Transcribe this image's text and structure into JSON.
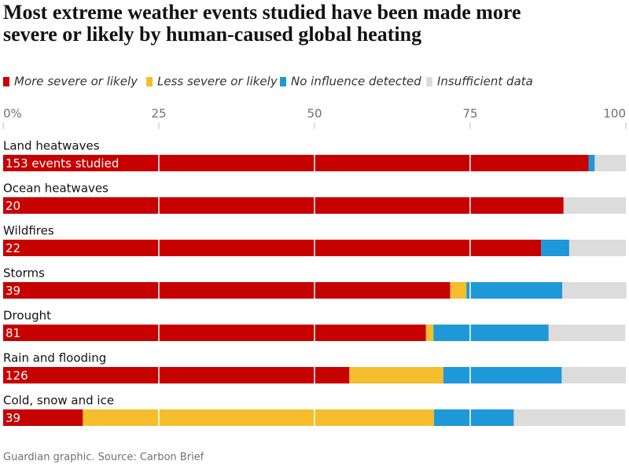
{
  "chart_data": {
    "type": "stacked-bar-horizontal",
    "title": "Most extreme weather events studied have been made more severe or likely by human-caused global heating",
    "source": "Guardian graphic. Source: Carbon Brief",
    "categories": [
      "Land heatwaves",
      "Ocean heatwaves",
      "Wildfires",
      "Storms",
      "Drought",
      "Rain and flooding",
      "Cold, snow and ice"
    ],
    "bar_labels": [
      "153 events studied",
      "20",
      "22",
      "39",
      "81",
      "126",
      "39"
    ],
    "series": [
      {
        "name": "More severe or likely",
        "color": "#c70000",
        "values": [
          94,
          90,
          86.4,
          71.8,
          67.9,
          55.6,
          12.8
        ]
      },
      {
        "name": "Less severe or likely",
        "color": "#f5be2c",
        "values": [
          0,
          0,
          0,
          2.6,
          1.2,
          15.1,
          56.4
        ]
      },
      {
        "name": "No influence detected",
        "color": "#1e98d6",
        "values": [
          1,
          0,
          4.5,
          15.4,
          18.5,
          19,
          12.8
        ]
      },
      {
        "name": "Insufficient data",
        "color": "#dcdcdc",
        "values": [
          5,
          10,
          9.1,
          10.3,
          12.3,
          10.3,
          17.9
        ]
      }
    ],
    "xlim": [
      0,
      100
    ],
    "xticks": [
      {
        "value": 0,
        "label": "0%"
      },
      25,
      50,
      75,
      100
    ],
    "grid": true
  }
}
